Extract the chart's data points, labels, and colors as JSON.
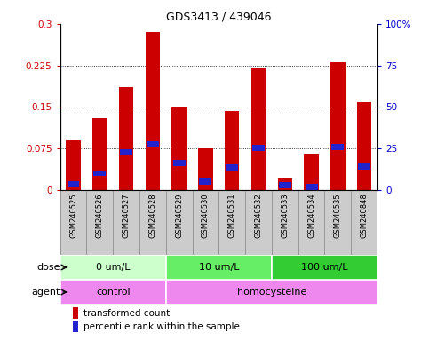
{
  "title": "GDS3413 / 439046",
  "samples": [
    "GSM240525",
    "GSM240526",
    "GSM240527",
    "GSM240528",
    "GSM240529",
    "GSM240530",
    "GSM240531",
    "GSM240532",
    "GSM240533",
    "GSM240534",
    "GSM240535",
    "GSM240848"
  ],
  "transformed_count": [
    0.09,
    0.13,
    0.185,
    0.285,
    0.15,
    0.075,
    0.143,
    0.22,
    0.02,
    0.065,
    0.23,
    0.158
  ],
  "percentile_rank": [
    0.01,
    0.03,
    0.068,
    0.082,
    0.048,
    0.015,
    0.04,
    0.075,
    0.008,
    0.005,
    0.077,
    0.042
  ],
  "bar_color": "#cc0000",
  "blue_color": "#2222cc",
  "ylim_left": [
    0,
    0.3
  ],
  "ylim_right": [
    0,
    100
  ],
  "yticks_left": [
    0,
    0.075,
    0.15,
    0.225,
    0.3
  ],
  "yticks_right": [
    0,
    25,
    50,
    75,
    100
  ],
  "ytick_labels_left": [
    "0",
    "0.075",
    "0.15",
    "0.225",
    "0.3"
  ],
  "ytick_labels_right": [
    "0",
    "25",
    "50",
    "75",
    "100%"
  ],
  "dose_groups": [
    {
      "label": "0 um/L",
      "start": 0,
      "end": 4,
      "color": "#ccffcc"
    },
    {
      "label": "10 um/L",
      "start": 4,
      "end": 8,
      "color": "#66ee66"
    },
    {
      "label": "100 um/L",
      "start": 8,
      "end": 12,
      "color": "#33cc33"
    }
  ],
  "agent_groups": [
    {
      "label": "control",
      "start": 0,
      "end": 4,
      "color": "#ee88ee"
    },
    {
      "label": "homocysteine",
      "start": 4,
      "end": 12,
      "color": "#ee88ee"
    }
  ],
  "legend_red": "transformed count",
  "legend_blue": "percentile rank within the sample",
  "dose_label": "dose",
  "agent_label": "agent",
  "bar_width": 0.55,
  "bg_color": "#ffffff",
  "axis_label_color_left": "#cc0000",
  "axis_label_color_right": "#0000cc",
  "sample_bg_color": "#cccccc",
  "sample_border_color": "#999999"
}
